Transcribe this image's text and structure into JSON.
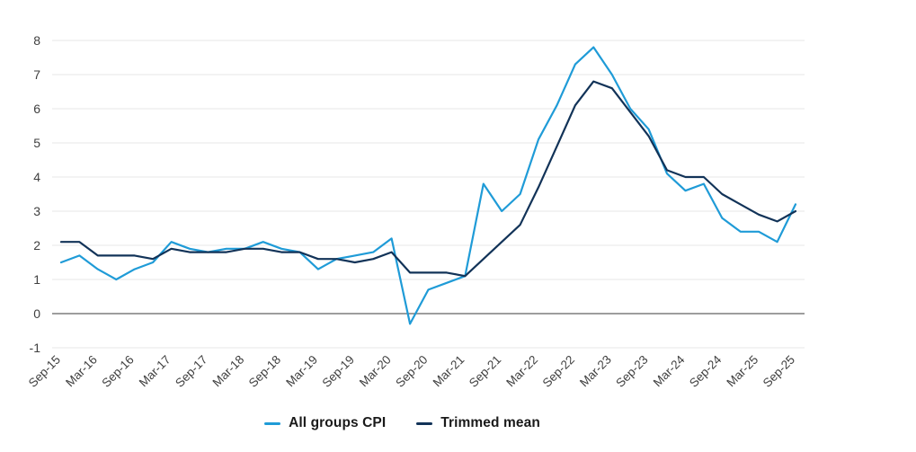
{
  "chart_data": {
    "type": "line",
    "title": "",
    "xlabel": "",
    "ylabel": "",
    "x": [
      "Sep-15",
      "Dec-15",
      "Mar-16",
      "Jun-16",
      "Sep-16",
      "Dec-16",
      "Mar-17",
      "Jun-17",
      "Sep-17",
      "Dec-17",
      "Mar-18",
      "Jun-18",
      "Sep-18",
      "Dec-18",
      "Mar-19",
      "Jun-19",
      "Sep-19",
      "Dec-19",
      "Mar-20",
      "Jun-20",
      "Sep-20",
      "Dec-20",
      "Mar-21",
      "Jun-21",
      "Sep-21",
      "Dec-21",
      "Mar-22",
      "Jun-22",
      "Sep-22",
      "Dec-22",
      "Mar-23",
      "Jun-23",
      "Sep-23",
      "Dec-23",
      "Mar-24",
      "Jun-24",
      "Sep-24",
      "Dec-24",
      "Mar-25",
      "Jun-25",
      "Sep-25"
    ],
    "x_tick_labels": [
      "Sep-15",
      "Mar-16",
      "Sep-16",
      "Mar-17",
      "Sep-17",
      "Mar-18",
      "Sep-18",
      "Mar-19",
      "Sep-19",
      "Mar-20",
      "Sep-20",
      "Mar-21",
      "Sep-21",
      "Mar-22",
      "Sep-22",
      "Mar-23",
      "Sep-23",
      "Mar-24",
      "Sep-24",
      "Mar-25",
      "Sep-25"
    ],
    "x_tick_interval": 2,
    "series": [
      {
        "name": "All groups CPI",
        "color": "#1f9bd7",
        "values": [
          1.5,
          1.7,
          1.3,
          1.0,
          1.3,
          1.5,
          2.1,
          1.9,
          1.8,
          1.9,
          1.9,
          2.1,
          1.9,
          1.8,
          1.3,
          1.6,
          1.7,
          1.8,
          2.2,
          -0.3,
          0.7,
          0.9,
          1.1,
          3.8,
          3.0,
          3.5,
          5.1,
          6.1,
          7.3,
          7.8,
          7.0,
          6.0,
          5.4,
          4.1,
          3.6,
          3.8,
          2.8,
          2.4,
          2.4,
          2.1,
          3.2
        ]
      },
      {
        "name": "Trimmed mean",
        "color": "#123358",
        "values": [
          2.1,
          2.1,
          1.7,
          1.7,
          1.7,
          1.6,
          1.9,
          1.8,
          1.8,
          1.8,
          1.9,
          1.9,
          1.8,
          1.8,
          1.6,
          1.6,
          1.5,
          1.6,
          1.8,
          1.2,
          1.2,
          1.2,
          1.1,
          1.6,
          2.1,
          2.6,
          3.7,
          4.9,
          6.1,
          6.8,
          6.6,
          5.9,
          5.2,
          4.2,
          4.0,
          4.0,
          3.5,
          3.2,
          2.9,
          2.7,
          3.0
        ]
      }
    ],
    "y_ticks": [
      -1,
      0,
      1,
      2,
      3,
      4,
      5,
      6,
      7,
      8
    ],
    "ylim": [
      -1,
      8
    ],
    "grid": "horizontal",
    "legend_position": "bottom",
    "colors": {
      "grid": "#e7e7e7",
      "zero_line": "#8f8f8f",
      "axis_text": "#3f3f3f",
      "legend_text": "#1a1a1a",
      "background": "#ffffff"
    }
  }
}
